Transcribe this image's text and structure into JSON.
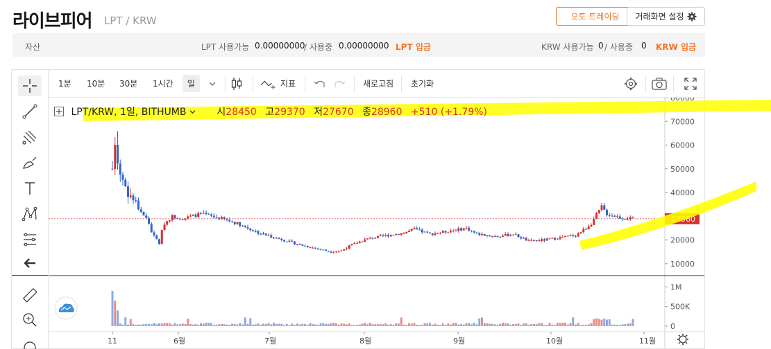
{
  "header": {
    "coin_name": "라이브피어",
    "pair": "LPT / KRW",
    "auto_trading": "오토 트레이딩",
    "screen_settings": "거래화면 설정"
  },
  "assets": {
    "label": "자산",
    "lpt_available_label": "LPT 사용가능",
    "lpt_available": "0.00000000",
    "lpt_in_use_label": "/ 사용중",
    "lpt_in_use": "0.00000000",
    "lpt_deposit": "LPT 입금",
    "krw_available_label": "KRW 사용가능",
    "krw_available": "0",
    "krw_in_use_label": "/ 사용중",
    "krw_in_use": "0",
    "krw_deposit": "KRW 입금"
  },
  "toolbar": {
    "intervals": [
      "1분",
      "10분",
      "30분",
      "1시간",
      "일"
    ],
    "selected_interval": "일",
    "indicators": "지표",
    "refresh": "새로고침",
    "reset": "초기화"
  },
  "legend": {
    "symbol": "LPT/KRW, 1일, BITHUMB",
    "open_label": "시",
    "open": "28450",
    "high_label": "고",
    "high": "29370",
    "low_label": "저",
    "low": "27670",
    "close_label": "종",
    "close": "28960",
    "change": "+510 (+1.79%)"
  },
  "colors": {
    "up": "#d6322f",
    "down": "#2f67c9",
    "accent": "#f37321",
    "highlight": "#ffff00"
  },
  "chart_data": {
    "type": "candlestick",
    "price_axis": {
      "ticks": [
        80000,
        70000,
        60000,
        50000,
        40000,
        30000,
        20000,
        10000
      ],
      "tick_labels": [
        "80000",
        "70000",
        "60000",
        "50000",
        "40000",
        "30000",
        "20000",
        "10000"
      ],
      "range": [
        5000,
        80000
      ]
    },
    "volume_axis": {
      "ticks": [
        1000000,
        500000,
        0
      ],
      "tick_labels": [
        "1M",
        "500K",
        "0"
      ],
      "range": [
        0,
        1200000
      ]
    },
    "x_ticks": [
      "11",
      "6월",
      "7월",
      "8월",
      "9월",
      "10월",
      "11월"
    ],
    "last_price": 28960,
    "last_price_label": "28960",
    "waypoints": [
      {
        "i": 0,
        "p": 50000
      },
      {
        "i": 1,
        "p": 62000
      },
      {
        "i": 3,
        "p": 48000
      },
      {
        "i": 6,
        "p": 40000
      },
      {
        "i": 10,
        "p": 34000
      },
      {
        "i": 14,
        "p": 27000
      },
      {
        "i": 16,
        "p": 21000
      },
      {
        "i": 18,
        "p": 19000
      },
      {
        "i": 20,
        "p": 27000
      },
      {
        "i": 23,
        "p": 30000
      },
      {
        "i": 27,
        "p": 29000
      },
      {
        "i": 34,
        "p": 31000
      },
      {
        "i": 42,
        "p": 29000
      },
      {
        "i": 48,
        "p": 27000
      },
      {
        "i": 56,
        "p": 23000
      },
      {
        "i": 64,
        "p": 20500
      },
      {
        "i": 72,
        "p": 18000
      },
      {
        "i": 84,
        "p": 15000
      },
      {
        "i": 88,
        "p": 15500
      },
      {
        "i": 92,
        "p": 18000
      },
      {
        "i": 98,
        "p": 20500
      },
      {
        "i": 106,
        "p": 22000
      },
      {
        "i": 112,
        "p": 23000
      },
      {
        "i": 116,
        "p": 24500
      },
      {
        "i": 122,
        "p": 22500
      },
      {
        "i": 128,
        "p": 23500
      },
      {
        "i": 136,
        "p": 25000
      },
      {
        "i": 140,
        "p": 22500
      },
      {
        "i": 148,
        "p": 21500
      },
      {
        "i": 154,
        "p": 22500
      },
      {
        "i": 160,
        "p": 19500
      },
      {
        "i": 166,
        "p": 20000
      },
      {
        "i": 172,
        "p": 21000
      },
      {
        "i": 178,
        "p": 22000
      },
      {
        "i": 182,
        "p": 25000
      },
      {
        "i": 184,
        "p": 27000
      },
      {
        "i": 188,
        "p": 34000
      },
      {
        "i": 190,
        "p": 31000
      },
      {
        "i": 195,
        "p": 29500
      },
      {
        "i": 200,
        "p": 28960
      }
    ]
  }
}
